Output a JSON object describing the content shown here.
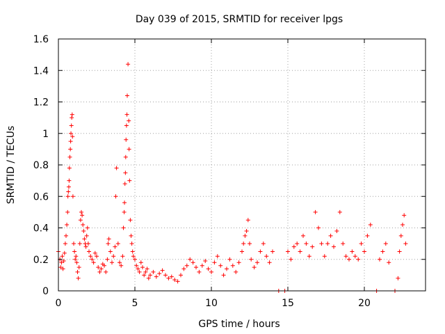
{
  "chart_data": {
    "type": "scatter",
    "title": "Day 039 of 2015, SRMTID for receiver lpgs",
    "xlabel": "GPS time / hours",
    "ylabel": "SRMTID / TECUs",
    "xlim": [
      0,
      24
    ],
    "ylim": [
      0,
      1.6
    ],
    "xticks": [
      0,
      5,
      10,
      15,
      20
    ],
    "xtick_labels": [
      "0",
      "5",
      "10",
      "15",
      "20"
    ],
    "yticks": [
      0,
      0.2,
      0.4,
      0.6,
      0.8,
      1.0,
      1.2,
      1.4,
      1.6
    ],
    "ytick_labels": [
      "0",
      "0.2",
      "0.4",
      "0.6",
      "0.8",
      "1",
      "1.2",
      "1.4",
      "1.6"
    ],
    "grid": true,
    "marker": "+",
    "color": "#ff0000",
    "series": [
      {
        "name": "SRMTID",
        "points": [
          [
            0.0,
            0.25
          ],
          [
            0.1,
            0.2
          ],
          [
            0.15,
            0.15
          ],
          [
            0.2,
            0.18
          ],
          [
            0.25,
            0.22
          ],
          [
            0.3,
            0.14
          ],
          [
            0.35,
            0.19
          ],
          [
            0.4,
            0.24
          ],
          [
            0.45,
            0.3
          ],
          [
            0.5,
            0.35
          ],
          [
            0.55,
            0.42
          ],
          [
            0.6,
            0.5
          ],
          [
            0.62,
            0.6
          ],
          [
            0.65,
            0.63
          ],
          [
            0.68,
            0.66
          ],
          [
            0.7,
            0.7
          ],
          [
            0.72,
            0.78
          ],
          [
            0.75,
            0.85
          ],
          [
            0.78,
            0.9
          ],
          [
            0.8,
            0.95
          ],
          [
            0.82,
            1.0
          ],
          [
            0.85,
            1.05
          ],
          [
            0.87,
            1.1
          ],
          [
            0.9,
            1.12
          ],
          [
            0.92,
            0.98
          ],
          [
            0.95,
            0.6
          ],
          [
            1.0,
            0.3
          ],
          [
            1.05,
            0.25
          ],
          [
            1.1,
            0.2
          ],
          [
            1.15,
            0.22
          ],
          [
            1.2,
            0.18
          ],
          [
            1.25,
            0.12
          ],
          [
            1.3,
            0.08
          ],
          [
            1.35,
            0.15
          ],
          [
            1.4,
            0.3
          ],
          [
            1.45,
            0.45
          ],
          [
            1.5,
            0.5
          ],
          [
            1.55,
            0.48
          ],
          [
            1.6,
            0.42
          ],
          [
            1.65,
            0.38
          ],
          [
            1.7,
            0.33
          ],
          [
            1.75,
            0.3
          ],
          [
            1.8,
            0.28
          ],
          [
            1.85,
            0.35
          ],
          [
            1.9,
            0.4
          ],
          [
            1.95,
            0.3
          ],
          [
            2.0,
            0.25
          ],
          [
            2.1,
            0.22
          ],
          [
            2.2,
            0.2
          ],
          [
            2.3,
            0.18
          ],
          [
            2.4,
            0.24
          ],
          [
            2.5,
            0.22
          ],
          [
            2.6,
            0.15
          ],
          [
            2.7,
            0.12
          ],
          [
            2.8,
            0.14
          ],
          [
            2.9,
            0.17
          ],
          [
            3.0,
            0.16
          ],
          [
            3.1,
            0.12
          ],
          [
            3.2,
            0.2
          ],
          [
            3.25,
            0.3
          ],
          [
            3.3,
            0.33
          ],
          [
            3.4,
            0.25
          ],
          [
            3.5,
            0.18
          ],
          [
            3.6,
            0.22
          ],
          [
            3.7,
            0.28
          ],
          [
            3.75,
            0.6
          ],
          [
            3.8,
            0.78
          ],
          [
            3.9,
            0.3
          ],
          [
            4.0,
            0.18
          ],
          [
            4.1,
            0.16
          ],
          [
            4.2,
            0.22
          ],
          [
            4.25,
            0.4
          ],
          [
            4.3,
            0.5
          ],
          [
            4.32,
            0.56
          ],
          [
            4.35,
            0.68
          ],
          [
            4.38,
            0.75
          ],
          [
            4.4,
            0.85
          ],
          [
            4.42,
            0.96
          ],
          [
            4.45,
            1.05
          ],
          [
            4.48,
            1.12
          ],
          [
            4.5,
            1.24
          ],
          [
            4.55,
            1.44
          ],
          [
            4.6,
            1.08
          ],
          [
            4.62,
            0.9
          ],
          [
            4.65,
            0.7
          ],
          [
            4.7,
            0.45
          ],
          [
            4.75,
            0.35
          ],
          [
            4.8,
            0.3
          ],
          [
            4.85,
            0.25
          ],
          [
            4.9,
            0.22
          ],
          [
            5.0,
            0.2
          ],
          [
            5.1,
            0.16
          ],
          [
            5.2,
            0.14
          ],
          [
            5.3,
            0.12
          ],
          [
            5.4,
            0.18
          ],
          [
            5.5,
            0.15
          ],
          [
            5.6,
            0.1
          ],
          [
            5.7,
            0.12
          ],
          [
            5.8,
            0.14
          ],
          [
            5.9,
            0.08
          ],
          [
            6.0,
            0.1
          ],
          [
            6.2,
            0.12
          ],
          [
            6.4,
            0.09
          ],
          [
            6.6,
            0.11
          ],
          [
            6.8,
            0.13
          ],
          [
            7.0,
            0.1
          ],
          [
            7.2,
            0.08
          ],
          [
            7.4,
            0.09
          ],
          [
            7.6,
            0.07
          ],
          [
            7.8,
            0.06
          ],
          [
            8.0,
            0.1
          ],
          [
            8.2,
            0.14
          ],
          [
            8.4,
            0.16
          ],
          [
            8.6,
            0.2
          ],
          [
            8.8,
            0.18
          ],
          [
            9.0,
            0.15
          ],
          [
            9.2,
            0.12
          ],
          [
            9.4,
            0.16
          ],
          [
            9.6,
            0.19
          ],
          [
            9.8,
            0.14
          ],
          [
            10.0,
            0.12
          ],
          [
            10.2,
            0.18
          ],
          [
            10.4,
            0.22
          ],
          [
            10.6,
            0.16
          ],
          [
            10.8,
            0.1
          ],
          [
            11.0,
            0.14
          ],
          [
            11.2,
            0.2
          ],
          [
            11.4,
            0.16
          ],
          [
            11.6,
            0.12
          ],
          [
            11.8,
            0.18
          ],
          [
            12.0,
            0.25
          ],
          [
            12.1,
            0.3
          ],
          [
            12.2,
            0.35
          ],
          [
            12.3,
            0.38
          ],
          [
            12.4,
            0.45
          ],
          [
            12.5,
            0.3
          ],
          [
            12.6,
            0.2
          ],
          [
            12.8,
            0.15
          ],
          [
            13.0,
            0.18
          ],
          [
            13.2,
            0.25
          ],
          [
            13.4,
            0.3
          ],
          [
            13.6,
            0.22
          ],
          [
            13.8,
            0.18
          ],
          [
            14.0,
            0.25
          ],
          [
            14.4,
            0.0
          ],
          [
            14.8,
            0.0
          ],
          [
            15.0,
            0.25
          ],
          [
            15.2,
            0.2
          ],
          [
            15.4,
            0.28
          ],
          [
            15.6,
            0.3
          ],
          [
            15.8,
            0.25
          ],
          [
            16.0,
            0.35
          ],
          [
            16.2,
            0.3
          ],
          [
            16.4,
            0.22
          ],
          [
            16.6,
            0.28
          ],
          [
            16.8,
            0.5
          ],
          [
            17.0,
            0.4
          ],
          [
            17.2,
            0.3
          ],
          [
            17.4,
            0.22
          ],
          [
            17.6,
            0.3
          ],
          [
            17.8,
            0.35
          ],
          [
            18.0,
            0.28
          ],
          [
            18.2,
            0.38
          ],
          [
            18.4,
            0.5
          ],
          [
            18.6,
            0.3
          ],
          [
            18.8,
            0.22
          ],
          [
            19.0,
            0.2
          ],
          [
            19.2,
            0.25
          ],
          [
            19.4,
            0.22
          ],
          [
            19.6,
            0.2
          ],
          [
            19.8,
            0.3
          ],
          [
            20.0,
            0.25
          ],
          [
            20.2,
            0.35
          ],
          [
            20.4,
            0.42
          ],
          [
            20.8,
            0.0
          ],
          [
            21.0,
            0.2
          ],
          [
            21.2,
            0.25
          ],
          [
            21.4,
            0.3
          ],
          [
            21.6,
            0.18
          ],
          [
            22.0,
            0.0
          ],
          [
            22.2,
            0.08
          ],
          [
            22.3,
            0.25
          ],
          [
            22.4,
            0.35
          ],
          [
            22.5,
            0.42
          ],
          [
            22.6,
            0.48
          ],
          [
            22.7,
            0.3
          ]
        ]
      }
    ]
  }
}
